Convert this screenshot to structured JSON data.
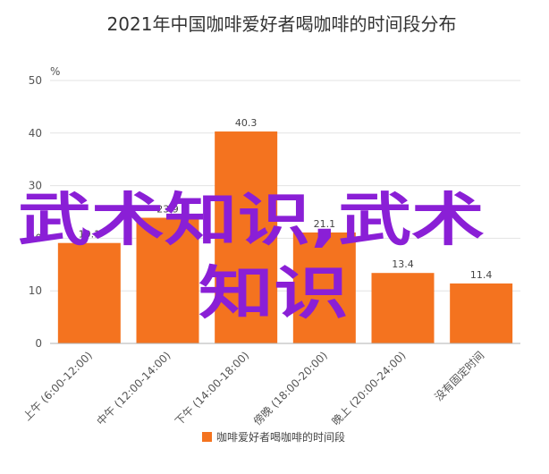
{
  "colors": {
    "bar": "#f4731f",
    "overlay": "#8a1fd6"
  },
  "chart_data": {
    "type": "bar",
    "title": "2021年中国咖啡爱好者喝咖啡的时间段分布",
    "unit_label": "%",
    "categories": [
      "上午 (6:00-12:00)",
      "中午 (12:00-14:00)",
      "下午 (14:00-18:00)",
      "傍晚 (18:00-20:00)",
      "晚上 (20:00-24:00)",
      "没有固定时间"
    ],
    "series": [
      {
        "name": "咖啡爱好者喝咖啡的时间段",
        "values": [
          19.1,
          23.9,
          40.3,
          21.1,
          13.4,
          11.4
        ]
      }
    ],
    "data_labels": [
      "19.1",
      "23.9",
      "40.3",
      "21.1",
      "13.4",
      "11.4"
    ],
    "ylim": [
      0,
      50
    ],
    "yticks": [
      0,
      10,
      20,
      30,
      40,
      50
    ],
    "ytick_labels": [
      "0",
      "10",
      "20",
      "30",
      "40",
      "50"
    ],
    "grid": true,
    "legend_position": "bottom"
  },
  "overlay": {
    "line1": "武术知识,武术",
    "line2": "知识"
  }
}
